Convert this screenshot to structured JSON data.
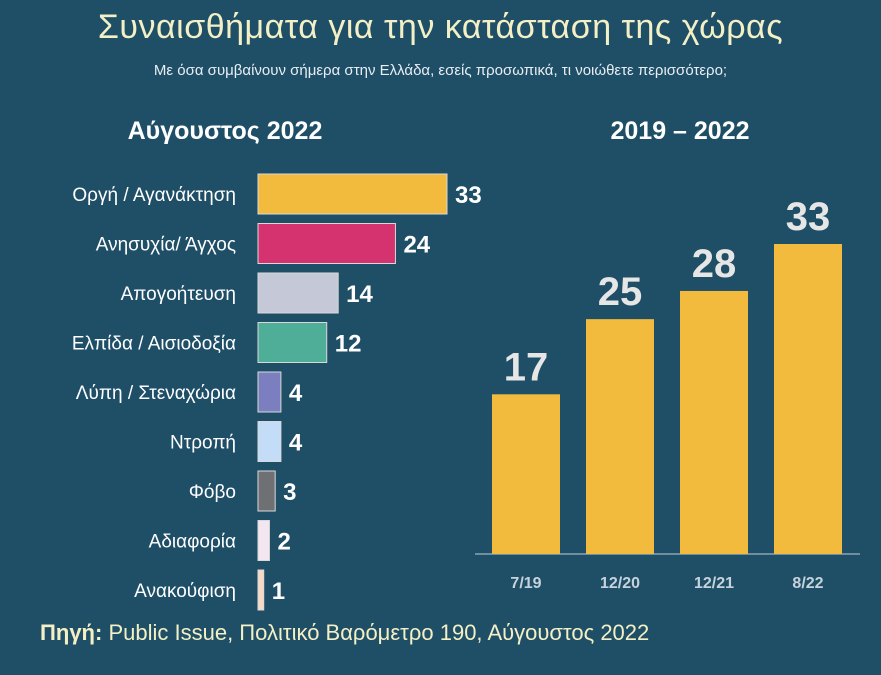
{
  "title": "Συναισθήματα για την κατάσταση της χώρας",
  "subtitle": "Με όσα συμβαίνουν σήμερα στην Ελλάδα, εσείς προσωπικά, τι νοιώθετε περισσότερο;",
  "source": {
    "label": "Πηγή:",
    "text": "Public Issue, Πολιτικό Βαρόμετρο 190, Αύγουστος 2022"
  },
  "chart_data": [
    {
      "type": "bar",
      "orientation": "horizontal",
      "title": "Αύγουστος 2022",
      "categories": [
        "Οργή / Αγανάκτηση",
        "Ανησυχία/ Άγχος",
        "Απογοήτευση",
        "Ελπίδα / Αισιοδοξία",
        "Λύπη / Στεναχώρια",
        "Ντροπή",
        "Φόβο",
        "Αδιαφορία",
        "Ανακούφιση"
      ],
      "values": [
        33,
        24,
        14,
        12,
        4,
        4,
        3,
        2,
        1
      ],
      "colors": [
        "#f2bb3e",
        "#d5336f",
        "#c5c8d6",
        "#4fae97",
        "#7b7fc0",
        "#c3dcf8",
        "#6f7073",
        "#f3e6f0",
        "#f7d9c4"
      ],
      "xlim": [
        0,
        33
      ]
    },
    {
      "type": "bar",
      "orientation": "vertical",
      "title": "2019 – 2022",
      "categories": [
        "7/19",
        "12/20",
        "12/21",
        "8/22"
      ],
      "values": [
        17,
        25,
        28,
        33
      ],
      "color": "#f2bb3e",
      "ylim": [
        0,
        33
      ]
    }
  ]
}
